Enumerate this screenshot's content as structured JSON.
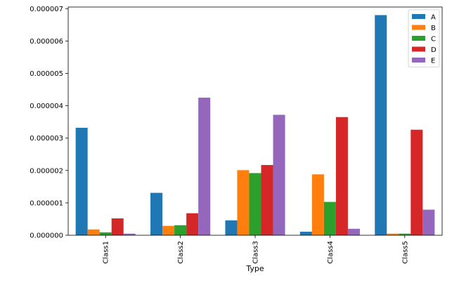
{
  "chart_data": {
    "type": "bar",
    "title": "",
    "xlabel": "Type",
    "ylabel": "",
    "categories": [
      "Class1",
      "Class2",
      "Class3",
      "Class4",
      "Class5"
    ],
    "series": [
      {
        "name": "A",
        "color": "#1f77b4",
        "values": [
          3.32e-06,
          1.31e-06,
          4.6e-07,
          1.1e-07,
          6.8e-06
        ]
      },
      {
        "name": "B",
        "color": "#ff7f0e",
        "values": [
          1.8e-07,
          2.9e-07,
          2.01e-06,
          1.88e-06,
          5e-08
        ]
      },
      {
        "name": "C",
        "color": "#2ca02c",
        "values": [
          9e-08,
          3.1e-07,
          1.92e-06,
          1.03e-06,
          5e-08
        ]
      },
      {
        "name": "D",
        "color": "#d62728",
        "values": [
          5.2e-07,
          6.8e-07,
          2.17e-06,
          3.65e-06,
          3.26e-06
        ]
      },
      {
        "name": "E",
        "color": "#9467bd",
        "values": [
          5e-08,
          4.25e-06,
          3.72e-06,
          2e-07,
          7.9e-07
        ]
      }
    ],
    "ylim": [
      0,
      7.05e-06
    ],
    "yticks": [
      0,
      1e-06,
      2e-06,
      3e-06,
      4e-06,
      5e-06,
      6e-06,
      7e-06
    ],
    "ytick_labels": [
      "0.000000",
      "0.000001",
      "0.000002",
      "0.000003",
      "0.000004",
      "0.000005",
      "0.000006",
      "0.000007"
    ],
    "xtick_rotation": "vertical",
    "grid": false,
    "legend_position": "top-right"
  }
}
